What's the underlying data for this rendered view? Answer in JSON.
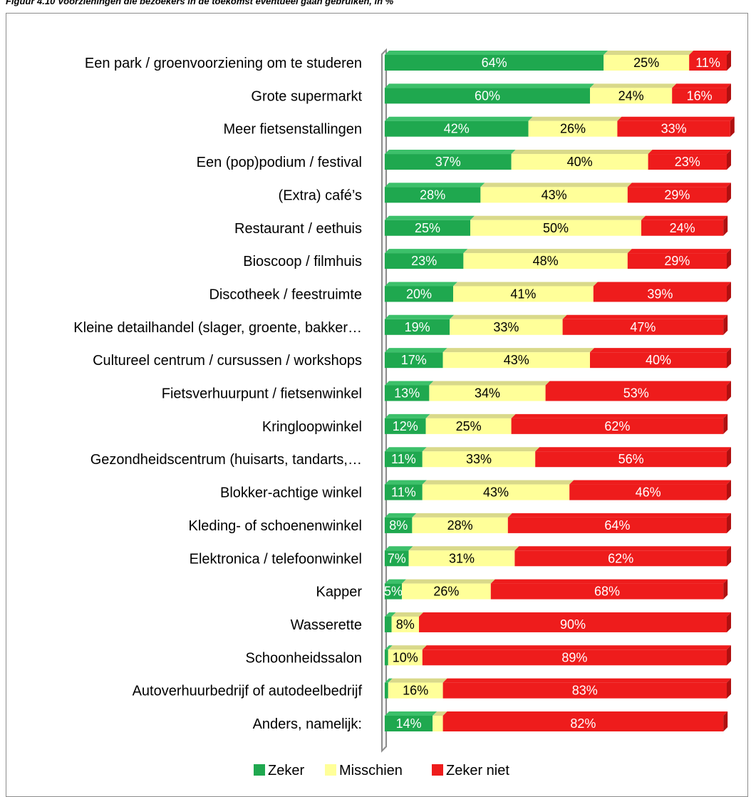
{
  "figure_caption": "Figuur 4.10 Voorzieningen die bezoekers in de toekomst eventueel gaan gebruiken, in %",
  "colors": {
    "zeker": "#1fa84f",
    "zeker_top": "#3cc06a",
    "misschien": "#ffff99",
    "misschien_top": "#d9d98a",
    "zeker_niet": "#ee1c1c",
    "zeker_niet_side": "#b01010",
    "axis": "#8c8c8c"
  },
  "chart_data": {
    "type": "bar",
    "orientation": "horizontal",
    "stacked": "percent",
    "title": "",
    "xlabel": "",
    "ylabel": "",
    "xlim": [
      0,
      100
    ],
    "grid": false,
    "legend_position": "bottom",
    "categories": [
      "Een park / groenvoorziening om te studeren",
      "Grote supermarkt",
      "Meer fietsenstallingen",
      "Een (pop)podium / festival",
      "(Extra) café’s",
      "Restaurant / eethuis",
      "Bioscoop / filmhuis",
      "Discotheek / feestruimte",
      "Kleine detailhandel (slager, groente, bakker…",
      "Cultureel centrum / cursussen / workshops",
      "Fietsverhuurpunt / fietsenwinkel",
      "Kringloopwinkel",
      "Gezondheidscentrum (huisarts, tandarts,…",
      "Blokker-achtige winkel",
      "Kleding- of schoenenwinkel",
      "Elektronica / telefoonwinkel",
      "Kapper",
      "Wasserette",
      "Schoonheidssalon",
      "Autoverhuurbedrijf of autodeelbedrijf",
      "Anders, namelijk:"
    ],
    "series": [
      {
        "name": "Zeker",
        "values": [
          64,
          60,
          42,
          37,
          28,
          25,
          23,
          20,
          19,
          17,
          13,
          12,
          11,
          11,
          8,
          7,
          5,
          2,
          1,
          1,
          14
        ],
        "labels": [
          "64%",
          "60%",
          "42%",
          "37%",
          "28%",
          "25%",
          "23%",
          "20%",
          "19%",
          "17%",
          "13%",
          "12%",
          "11%",
          "11%",
          "8%",
          "7%",
          "5%",
          "",
          "",
          "",
          "14%"
        ]
      },
      {
        "name": "Misschien",
        "values": [
          25,
          24,
          26,
          40,
          43,
          50,
          48,
          41,
          33,
          43,
          34,
          25,
          33,
          43,
          28,
          31,
          26,
          8,
          10,
          16,
          3
        ],
        "labels": [
          "25%",
          "24%",
          "26%",
          "40%",
          "43%",
          "50%",
          "48%",
          "41%",
          "33%",
          "43%",
          "34%",
          "25%",
          "33%",
          "43%",
          "28%",
          "31%",
          "26%",
          "8%",
          "10%",
          "16%",
          ""
        ]
      },
      {
        "name": "Zeker niet",
        "values": [
          11,
          16,
          33,
          23,
          29,
          24,
          29,
          39,
          47,
          40,
          53,
          62,
          56,
          46,
          64,
          62,
          68,
          90,
          89,
          83,
          82
        ],
        "labels": [
          "11%",
          "16%",
          "33%",
          "23%",
          "29%",
          "24%",
          "29%",
          "39%",
          "47%",
          "40%",
          "53%",
          "62%",
          "56%",
          "46%",
          "64%",
          "62%",
          "68%",
          "90%",
          "89%",
          "83%",
          "82%"
        ]
      }
    ]
  }
}
